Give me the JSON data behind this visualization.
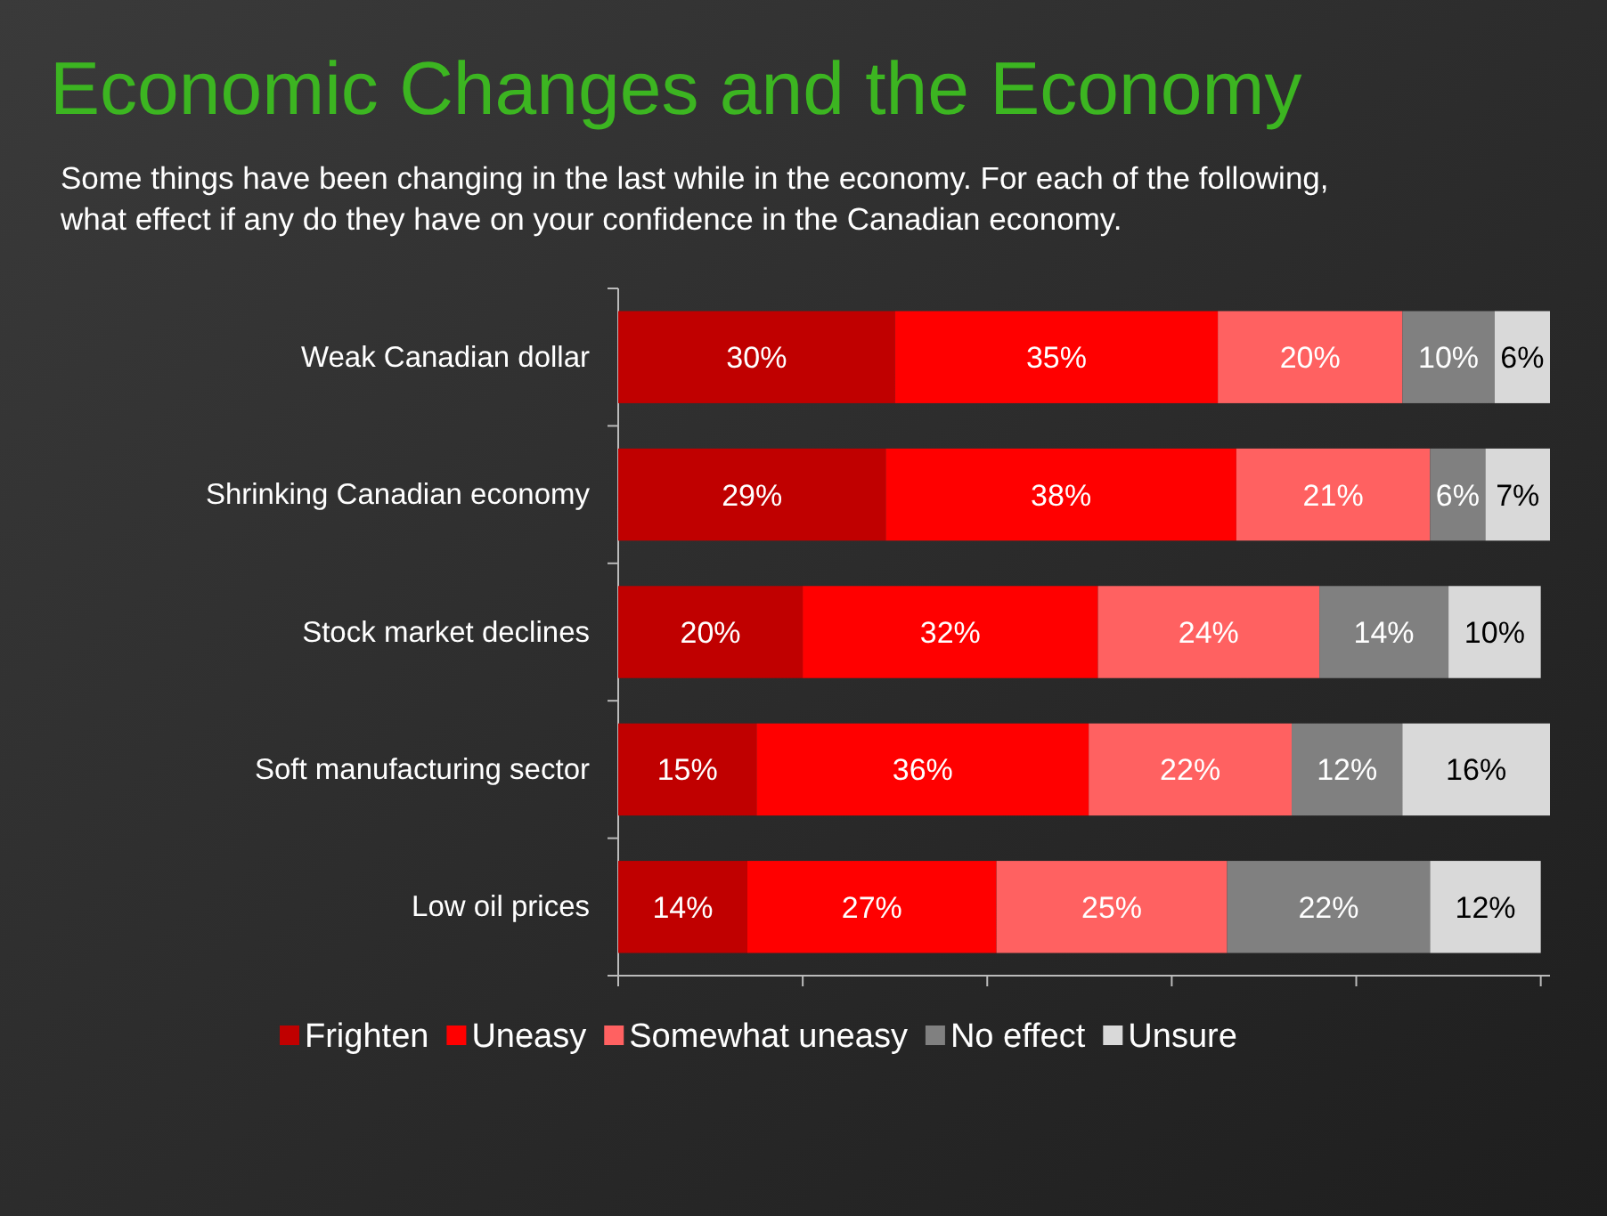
{
  "chart_data": {
    "type": "bar",
    "orientation": "horizontal",
    "stacked": true,
    "title": "Economic Changes and the Economy",
    "subtitle": "Some things have been changing in the last while in the economy. For each of the following, what effect if any do they have on your confidence in the Canadian economy.",
    "categories": [
      "Weak Canadian dollar",
      "Shrinking Canadian economy",
      "Stock market declines",
      "Soft manufacturing sector",
      "Low oil prices"
    ],
    "series": [
      {
        "name": "Frighten",
        "color": "#c00000",
        "values": [
          30,
          29,
          20,
          15,
          14
        ],
        "value_labels": [
          "30%",
          "29%",
          "20%",
          "15%",
          "14%"
        ]
      },
      {
        "name": "Uneasy",
        "color": "#ff0000",
        "values": [
          35,
          38,
          32,
          36,
          27
        ],
        "value_labels": [
          "35%",
          "38%",
          "32%",
          "36%",
          "27%"
        ]
      },
      {
        "name": "Somewhat uneasy",
        "color": "#ff6161",
        "values": [
          20,
          21,
          24,
          22,
          25
        ],
        "value_labels": [
          "20%",
          "21%",
          "24%",
          "22%",
          "25%"
        ]
      },
      {
        "name": "No effect",
        "color": "#808080",
        "values": [
          10,
          6,
          14,
          12,
          22
        ],
        "value_labels": [
          "10%",
          "6%",
          "14%",
          "12%",
          "22%"
        ]
      },
      {
        "name": "Unsure",
        "color": "#d9d9d9",
        "values": [
          6,
          7,
          10,
          16,
          12
        ],
        "value_labels": [
          "6%",
          "7%",
          "10%",
          "16%",
          "12%"
        ]
      }
    ],
    "xlim": [
      0,
      101
    ],
    "xticks": [
      {
        "value": 0,
        "label": null
      },
      {
        "value": 20,
        "label": null
      },
      {
        "value": 40,
        "label": null
      },
      {
        "value": 60,
        "label": null
      },
      {
        "value": 80,
        "label": null
      },
      {
        "value": 100,
        "label": null
      }
    ],
    "tick_labels": "y",
    "legend": "bottom",
    "grid": false
  }
}
